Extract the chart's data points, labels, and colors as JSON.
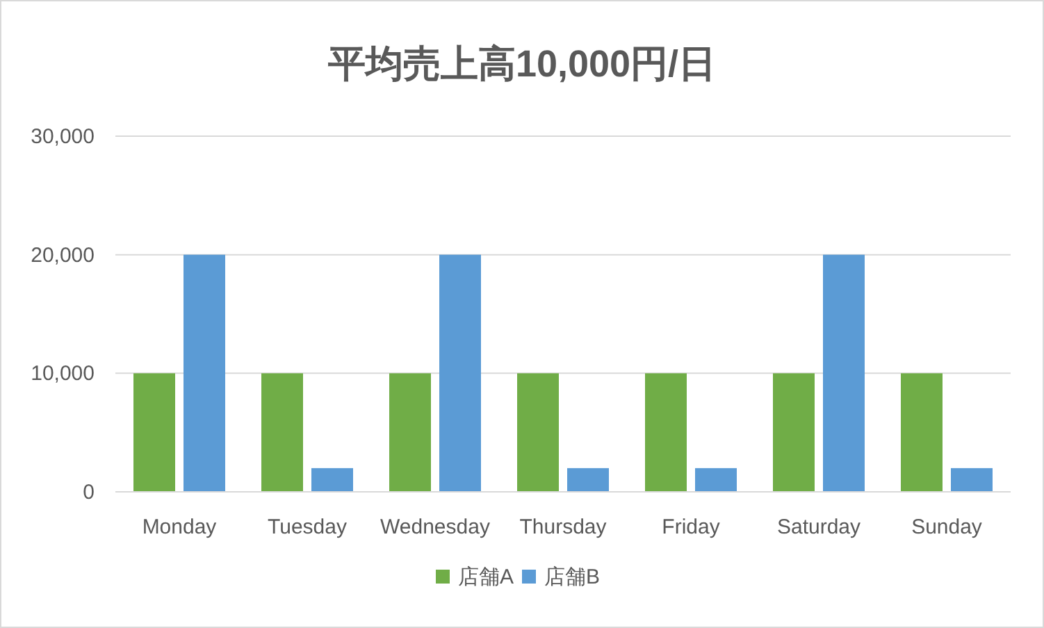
{
  "chart_data": {
    "type": "bar",
    "title": "平均売上高10,000円/日",
    "categories": [
      "Monday",
      "Tuesday",
      "Wednesday",
      "Thursday",
      "Friday",
      "Saturday",
      "Sunday"
    ],
    "series": [
      {
        "name": "店舗A",
        "color": "#70ad47",
        "values": [
          10000,
          10000,
          10000,
          10000,
          10000,
          10000,
          10000
        ]
      },
      {
        "name": "店舗B",
        "color": "#5b9bd5",
        "values": [
          20000,
          2000,
          20000,
          2000,
          2000,
          20000,
          2000
        ]
      }
    ],
    "ylim": [
      0,
      30000
    ],
    "yticks": [
      {
        "value": 0,
        "label": "0"
      },
      {
        "value": 10000,
        "label": "10,000"
      },
      {
        "value": 20000,
        "label": "20,000"
      },
      {
        "value": 30000,
        "label": "30,000"
      }
    ],
    "grid": "y",
    "legend": "bottom"
  }
}
